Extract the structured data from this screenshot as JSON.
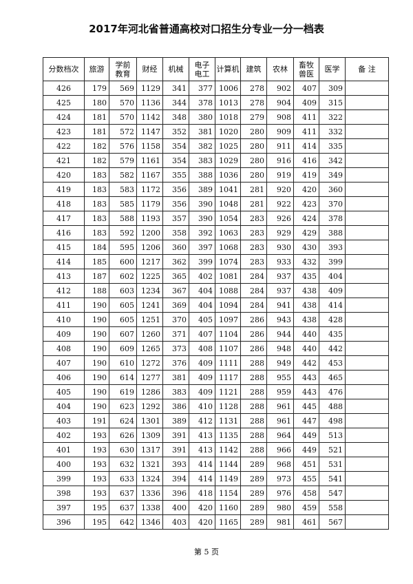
{
  "title": "2017年河北省普通高校对口招生分专业一分一档表",
  "headers": [
    "分数档次",
    "旅游",
    "学前\n教育",
    "财经",
    "机械",
    "电子\n电工",
    "计算机",
    "建筑",
    "农林",
    "畜牧\n兽医",
    "医学",
    "备 注"
  ],
  "rows": [
    [
      "426",
      "179",
      "569",
      "1129",
      "341",
      "377",
      "1006",
      "278",
      "902",
      "407",
      "309",
      ""
    ],
    [
      "425",
      "180",
      "570",
      "1136",
      "344",
      "378",
      "1013",
      "278",
      "904",
      "409",
      "315",
      ""
    ],
    [
      "424",
      "181",
      "570",
      "1142",
      "348",
      "380",
      "1018",
      "279",
      "908",
      "411",
      "322",
      ""
    ],
    [
      "423",
      "181",
      "572",
      "1147",
      "352",
      "381",
      "1020",
      "280",
      "909",
      "411",
      "332",
      ""
    ],
    [
      "422",
      "182",
      "576",
      "1158",
      "354",
      "382",
      "1025",
      "280",
      "911",
      "414",
      "335",
      ""
    ],
    [
      "421",
      "182",
      "579",
      "1161",
      "354",
      "383",
      "1029",
      "280",
      "916",
      "416",
      "342",
      ""
    ],
    [
      "420",
      "183",
      "582",
      "1167",
      "355",
      "388",
      "1036",
      "280",
      "919",
      "419",
      "349",
      ""
    ],
    [
      "419",
      "183",
      "583",
      "1172",
      "356",
      "389",
      "1041",
      "281",
      "920",
      "420",
      "360",
      ""
    ],
    [
      "418",
      "183",
      "585",
      "1179",
      "356",
      "390",
      "1048",
      "281",
      "922",
      "423",
      "370",
      ""
    ],
    [
      "417",
      "183",
      "588",
      "1193",
      "357",
      "390",
      "1054",
      "283",
      "926",
      "424",
      "378",
      ""
    ],
    [
      "416",
      "183",
      "592",
      "1200",
      "358",
      "392",
      "1063",
      "283",
      "929",
      "429",
      "388",
      ""
    ],
    [
      "415",
      "184",
      "595",
      "1206",
      "360",
      "397",
      "1068",
      "283",
      "930",
      "430",
      "393",
      ""
    ],
    [
      "414",
      "185",
      "600",
      "1217",
      "362",
      "399",
      "1074",
      "283",
      "933",
      "432",
      "399",
      ""
    ],
    [
      "413",
      "187",
      "602",
      "1225",
      "365",
      "402",
      "1081",
      "284",
      "937",
      "435",
      "404",
      ""
    ],
    [
      "412",
      "188",
      "603",
      "1234",
      "367",
      "404",
      "1088",
      "284",
      "937",
      "438",
      "409",
      ""
    ],
    [
      "411",
      "190",
      "605",
      "1241",
      "369",
      "404",
      "1094",
      "284",
      "941",
      "438",
      "414",
      ""
    ],
    [
      "410",
      "190",
      "605",
      "1251",
      "370",
      "405",
      "1097",
      "286",
      "943",
      "438",
      "428",
      ""
    ],
    [
      "409",
      "190",
      "607",
      "1260",
      "371",
      "407",
      "1104",
      "286",
      "944",
      "440",
      "435",
      ""
    ],
    [
      "408",
      "190",
      "609",
      "1265",
      "373",
      "408",
      "1107",
      "286",
      "948",
      "440",
      "442",
      ""
    ],
    [
      "407",
      "190",
      "610",
      "1272",
      "376",
      "409",
      "1111",
      "288",
      "949",
      "442",
      "453",
      ""
    ],
    [
      "406",
      "190",
      "614",
      "1277",
      "381",
      "409",
      "1117",
      "288",
      "955",
      "443",
      "465",
      ""
    ],
    [
      "405",
      "190",
      "619",
      "1286",
      "383",
      "409",
      "1121",
      "288",
      "959",
      "443",
      "476",
      ""
    ],
    [
      "404",
      "190",
      "623",
      "1292",
      "386",
      "410",
      "1128",
      "288",
      "961",
      "445",
      "488",
      ""
    ],
    [
      "403",
      "191",
      "624",
      "1301",
      "389",
      "412",
      "1131",
      "288",
      "961",
      "447",
      "498",
      ""
    ],
    [
      "402",
      "193",
      "626",
      "1309",
      "391",
      "413",
      "1135",
      "288",
      "964",
      "449",
      "513",
      ""
    ],
    [
      "401",
      "193",
      "630",
      "1317",
      "391",
      "413",
      "1142",
      "288",
      "966",
      "449",
      "521",
      ""
    ],
    [
      "400",
      "193",
      "632",
      "1321",
      "393",
      "414",
      "1144",
      "289",
      "968",
      "451",
      "531",
      ""
    ],
    [
      "399",
      "193",
      "633",
      "1324",
      "394",
      "414",
      "1149",
      "289",
      "973",
      "455",
      "541",
      ""
    ],
    [
      "398",
      "193",
      "637",
      "1336",
      "396",
      "418",
      "1154",
      "289",
      "976",
      "458",
      "547",
      ""
    ],
    [
      "397",
      "195",
      "637",
      "1338",
      "400",
      "420",
      "1160",
      "289",
      "980",
      "459",
      "558",
      ""
    ],
    [
      "396",
      "195",
      "642",
      "1346",
      "403",
      "420",
      "1165",
      "289",
      "981",
      "461",
      "567",
      ""
    ]
  ],
  "footer": "第 5 页"
}
